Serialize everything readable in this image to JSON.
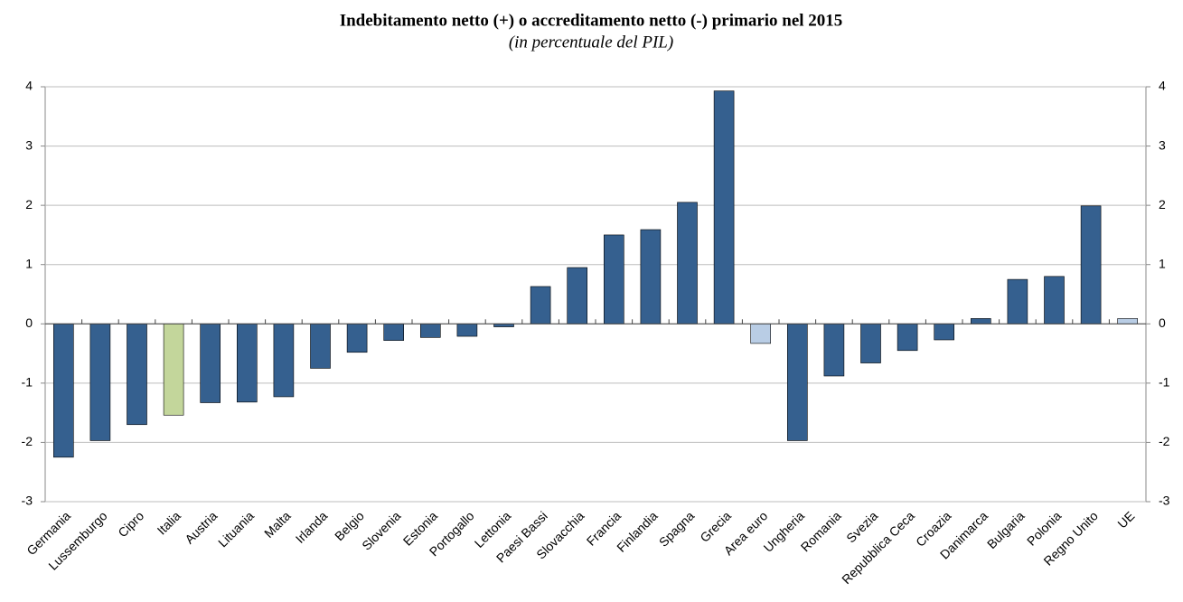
{
  "chart_data": {
    "type": "bar",
    "title": "Indebitamento netto (+) o accreditamento netto (-) primario nel 2015",
    "subtitle": "(in percentuale del PIL)",
    "categories": [
      "Germania",
      "Lussemburgo",
      "Cipro",
      "Italia",
      "Austria",
      "Lituania",
      "Malta",
      "Irlanda",
      "Belgio",
      "Slovenia",
      "Estonia",
      "Portogallo",
      "Lettonia",
      "Paesi Bassi",
      "Slovacchia",
      "Francia",
      "Finlandia",
      "Spagna",
      "Grecia",
      "Area euro",
      "Ungheria",
      "Romania",
      "Svezia",
      "Repubblica Ceca",
      "Croazia",
      "Danimarca",
      "Bulgaria",
      "Polonia",
      "Regno Unito",
      "UE"
    ],
    "values": [
      -2.25,
      -1.97,
      -1.7,
      -1.54,
      -1.33,
      -1.32,
      -1.23,
      -0.75,
      -0.48,
      -0.28,
      -0.23,
      -0.21,
      -0.05,
      0.63,
      0.95,
      1.5,
      1.59,
      2.05,
      3.93,
      -0.33,
      -1.97,
      -0.88,
      -0.66,
      -0.45,
      -0.27,
      0.09,
      0.75,
      0.8,
      1.99,
      0.09
    ],
    "colors": [
      "#35608f",
      "#35608f",
      "#35608f",
      "#c3d69b",
      "#35608f",
      "#35608f",
      "#35608f",
      "#35608f",
      "#35608f",
      "#35608f",
      "#35608f",
      "#35608f",
      "#35608f",
      "#35608f",
      "#35608f",
      "#35608f",
      "#35608f",
      "#35608f",
      "#35608f",
      "#b9cde5",
      "#35608f",
      "#35608f",
      "#35608f",
      "#35608f",
      "#35608f",
      "#35608f",
      "#35608f",
      "#35608f",
      "#35608f",
      "#b9cde5"
    ],
    "ylim": [
      -3,
      4
    ],
    "yticks": [
      -3,
      -2,
      -1,
      0,
      1,
      2,
      3,
      4
    ],
    "y2lim": [
      -3,
      4
    ],
    "y2ticks": [
      -3,
      -2,
      -1,
      0,
      1,
      2,
      3,
      4
    ],
    "grid": true
  }
}
